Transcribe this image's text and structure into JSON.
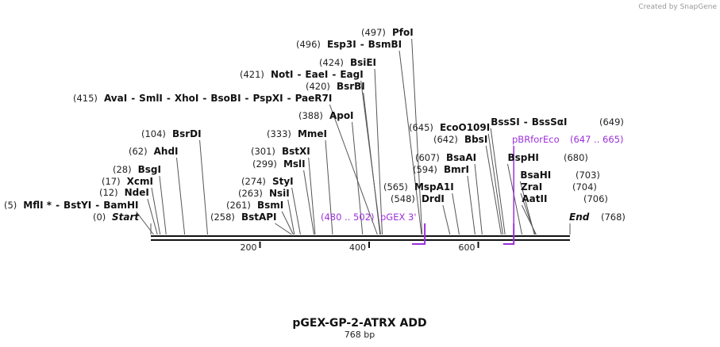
{
  "credit": "Created by SnapGene",
  "title": "pGEX-GP-2-ATRX ADD",
  "subtitle": "768 bp",
  "chart_data": {
    "type": "linear-plasmid-map",
    "length": 768,
    "axis_ticks": [
      200,
      400,
      600
    ],
    "start_label": {
      "pos": "(0)",
      "name": "Start"
    },
    "end_label": {
      "name": "End",
      "pos": "(768)"
    },
    "sites": [
      {
        "pos": "(5)",
        "names": [
          "MflI *",
          "BstYI",
          "BamHI"
        ]
      },
      {
        "pos": "(12)",
        "names": [
          "NdeI"
        ]
      },
      {
        "pos": "(17)",
        "names": [
          "XcmI"
        ]
      },
      {
        "pos": "(28)",
        "names": [
          "BsgI"
        ]
      },
      {
        "pos": "(62)",
        "names": [
          "AhdI"
        ]
      },
      {
        "pos": "(104)",
        "names": [
          "BsrDI"
        ]
      },
      {
        "pos": "(258)",
        "names": [
          "BstAPI"
        ]
      },
      {
        "pos": "(261)",
        "names": [
          "BsmI"
        ]
      },
      {
        "pos": "(263)",
        "names": [
          "NsiI"
        ]
      },
      {
        "pos": "(274)",
        "names": [
          "StyI"
        ]
      },
      {
        "pos": "(299)",
        "names": [
          "MslI"
        ]
      },
      {
        "pos": "(301)",
        "names": [
          "BstXI"
        ]
      },
      {
        "pos": "(333)",
        "names": [
          "MmeI"
        ]
      },
      {
        "pos": "(388)",
        "names": [
          "ApoI"
        ]
      },
      {
        "pos": "(415)",
        "names": [
          "AvaI",
          "SmlI",
          "XhoI",
          "BsoBI",
          "PspXI",
          "PaeR7I"
        ]
      },
      {
        "pos": "(420)",
        "names": [
          "BsrBI"
        ]
      },
      {
        "pos": "(421)",
        "names": [
          "NotI",
          "EaeI",
          "EagI"
        ]
      },
      {
        "pos": "(424)",
        "names": [
          "BsiEI"
        ]
      },
      {
        "pos": "(496)",
        "names": [
          "Esp3I",
          "BsmBI"
        ]
      },
      {
        "pos": "(497)",
        "names": [
          "PfoI"
        ]
      },
      {
        "pos": "(548)",
        "names": [
          "DrdI"
        ]
      },
      {
        "pos": "(565)",
        "names": [
          "MspA1I"
        ]
      },
      {
        "pos": "(594)",
        "names": [
          "BmrI"
        ]
      },
      {
        "pos": "(607)",
        "names": [
          "BsaAI"
        ]
      },
      {
        "pos": "(642)",
        "names": [
          "BbsI"
        ]
      },
      {
        "pos": "(645)",
        "names": [
          "EcoO109I"
        ]
      },
      {
        "pos": "(649)",
        "names": [
          "BssSI",
          "BssSαI"
        ]
      },
      {
        "pos": "(680)",
        "names": [
          "BspHI"
        ]
      },
      {
        "pos": "(703)",
        "names": [
          "BsaHI"
        ]
      },
      {
        "pos": "(704)",
        "names": [
          "ZraI"
        ]
      },
      {
        "pos": "(706)",
        "names": [
          "AatII"
        ]
      }
    ],
    "primers": [
      {
        "range": "(480 .. 502)",
        "name": "pGEX 3'",
        "start": 480,
        "end": 502,
        "direction": "reverse"
      },
      {
        "name": "pBRforEco",
        "range": "(647 .. 665)",
        "start": 647,
        "end": 665,
        "direction": "reverse"
      }
    ],
    "colors": {
      "primer": "#9b30d9",
      "backbone": "#111111",
      "leader": "#555555"
    }
  }
}
